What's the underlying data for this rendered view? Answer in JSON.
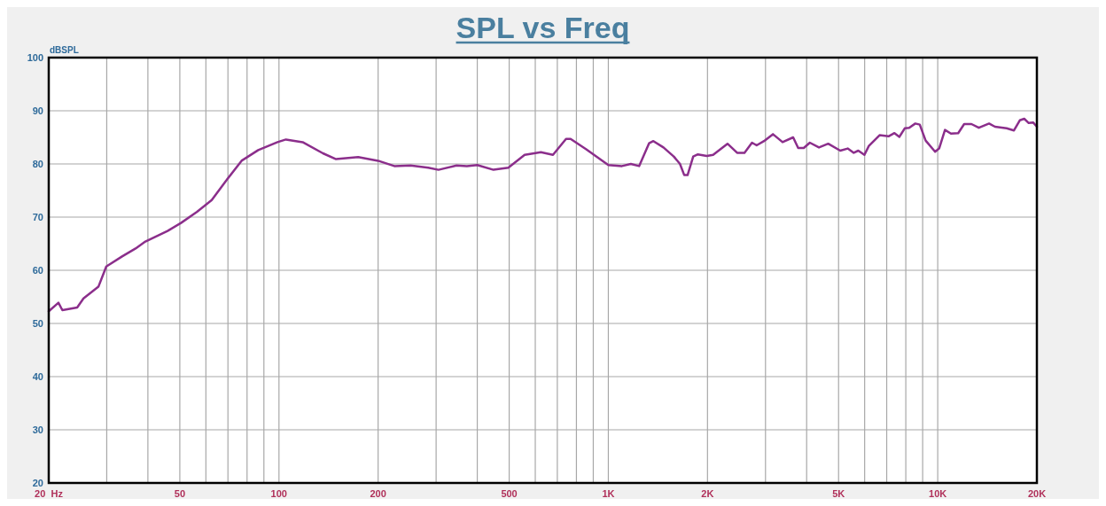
{
  "chart_data": {
    "type": "line",
    "title": "SPL vs Freq",
    "ylabel": "dBSPL",
    "log": "x",
    "grid": true,
    "marker": "none",
    "line_style": "solid",
    "xlim": [
      20,
      20000
    ],
    "ylim": [
      20,
      100
    ],
    "xticks": [
      {
        "value": 20,
        "label": "20  Hz"
      },
      50,
      100,
      200,
      500,
      {
        "value": 1000,
        "label": "1K"
      },
      {
        "value": 2000,
        "label": "2K"
      },
      {
        "value": 5000,
        "label": "5K"
      },
      {
        "value": 10000,
        "label": "10K"
      },
      {
        "value": 20000,
        "label": "20K"
      }
    ],
    "yticks": [
      20,
      30,
      40,
      50,
      60,
      70,
      80,
      90,
      100
    ],
    "series": [
      {
        "color": "#8b2e8b",
        "x": [
          20,
          21.4,
          22,
          24.4,
          25.5,
          28.3,
          29.9,
          33.4,
          36.7,
          39.3,
          45.9,
          50.4,
          56.4,
          62.5,
          69,
          77,
          86.5,
          99,
          105,
          118,
          136,
          149,
          174,
          200,
          224,
          251,
          284,
          305,
          346,
          372,
          400,
          448,
          497,
          557,
          624,
          679,
          744,
          768,
          855,
          1000,
          1100,
          1170,
          1240,
          1330,
          1370,
          1470,
          1580,
          1650,
          1700,
          1740,
          1810,
          1870,
          1990,
          2080,
          2300,
          2460,
          2590,
          2730,
          2820,
          2970,
          3160,
          3380,
          3640,
          3770,
          3920,
          4090,
          4360,
          4650,
          5060,
          5330,
          5560,
          5740,
          5990,
          6180,
          6660,
          7090,
          7390,
          7650,
          7940,
          8190,
          8550,
          8820,
          9190,
          9820,
          10100,
          10520,
          10970,
          11540,
          12030,
          12660,
          13330,
          14320,
          14920,
          16190,
          17040,
          17750,
          18310,
          18890,
          19480,
          20000
        ],
        "values": [
          52.3,
          53.9,
          52.5,
          53,
          54.7,
          56.9,
          60.7,
          62.6,
          64.1,
          65.4,
          67.4,
          68.9,
          71,
          73.2,
          76.8,
          80.6,
          82.6,
          84.1,
          84.6,
          84.1,
          82,
          80.9,
          81.3,
          80.6,
          79.6,
          79.7,
          79.3,
          78.9,
          79.7,
          79.6,
          79.8,
          78.9,
          79.3,
          81.7,
          82.2,
          81.7,
          84.7,
          84.7,
          82.8,
          79.8,
          79.6,
          80,
          79.6,
          83.9,
          84.3,
          83.1,
          81.4,
          80,
          77.9,
          77.9,
          81.4,
          81.8,
          81.5,
          81.7,
          83.8,
          82.1,
          82.1,
          84,
          83.5,
          84.3,
          85.6,
          84.1,
          85,
          83,
          83,
          84,
          83.1,
          83.8,
          82.5,
          82.9,
          82.1,
          82.5,
          81.7,
          83.4,
          85.4,
          85.2,
          85.8,
          85.1,
          86.7,
          86.8,
          87.6,
          87.4,
          84.4,
          82.3,
          82.9,
          86.4,
          85.7,
          85.8,
          87.5,
          87.5,
          86.8,
          87.6,
          87,
          86.7,
          86.3,
          88.2,
          88.5,
          87.7,
          87.8,
          87
        ]
      }
    ]
  }
}
